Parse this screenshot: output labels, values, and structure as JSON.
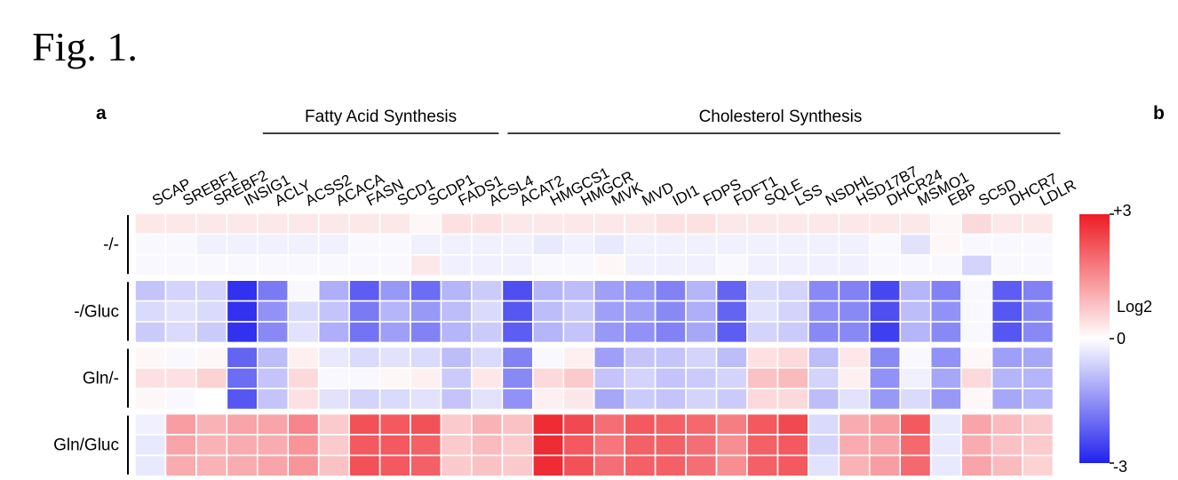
{
  "figure_title": "Fig. 1.",
  "panel_a": "a",
  "panel_b": "b",
  "chart_data": {
    "type": "heatmap",
    "groups": [
      {
        "label": "Fatty Acid Synthesis"
      },
      {
        "label": "Cholesterol Synthesis"
      }
    ],
    "columns": [
      "SCAP",
      "SREBF1",
      "SREBF2",
      "INSIG1",
      "ACLY",
      "ACSS2",
      "ACACA",
      "FASN",
      "SCD1",
      "SCDP1",
      "FADS1",
      "ACSL4",
      "ACAT2",
      "HMGCS1",
      "HMGCR",
      "MVK",
      "MVD",
      "IDI1",
      "FDPS",
      "FDFT1",
      "SQLE",
      "LSS",
      "NSDHL",
      "HSD17B7",
      "DHCR24",
      "MSMO1",
      "EBP",
      "SC5D",
      "DHCR7",
      "LDLR"
    ],
    "row_groups": [
      {
        "label": "-/-",
        "rows": [
          [
            0.3,
            0.3,
            0.3,
            0.3,
            0.3,
            0.3,
            0.3,
            0.3,
            0.3,
            0.1,
            0.4,
            0.4,
            0.3,
            0.3,
            0.3,
            0.3,
            0.3,
            0.4,
            0.4,
            0.3,
            0.3,
            0.3,
            0.3,
            0.3,
            0.3,
            0.3,
            0.1,
            0.5,
            0.3,
            0.3
          ],
          [
            -0.1,
            -0.1,
            -0.2,
            -0.2,
            -0.2,
            -0.2,
            -0.2,
            -0.1,
            -0.1,
            -0.2,
            -0.2,
            -0.2,
            -0.2,
            -0.3,
            -0.2,
            -0.3,
            -0.2,
            -0.2,
            -0.2,
            -0.2,
            -0.2,
            -0.2,
            -0.2,
            -0.2,
            -0.1,
            -0.4,
            0.1,
            -0.1,
            -0.1,
            -0.1
          ],
          [
            -0.1,
            -0.1,
            -0.1,
            -0.1,
            -0.1,
            -0.1,
            -0.1,
            -0.1,
            -0.1,
            0.3,
            -0.2,
            -0.2,
            -0.2,
            -0.1,
            -0.1,
            0.1,
            -0.2,
            -0.2,
            -0.2,
            -0.1,
            -0.2,
            -0.2,
            -0.2,
            -0.2,
            -0.1,
            -0.1,
            -0.1,
            -0.6,
            -0.1,
            -0.1
          ]
        ]
      },
      {
        "label": "-/Gluc",
        "rows": [
          [
            -0.8,
            -0.6,
            -0.6,
            -2.8,
            -1.8,
            -0.1,
            -1.1,
            -2.2,
            -1.4,
            -2.0,
            -1.0,
            -0.7,
            -2.4,
            -1.0,
            -0.9,
            -1.3,
            -1.4,
            -1.7,
            -1.0,
            -2.1,
            -0.5,
            -0.6,
            -1.6,
            -1.7,
            -2.5,
            -1.0,
            -1.7,
            -0.1,
            -2.2,
            -1.7
          ],
          [
            -0.5,
            -0.4,
            -0.5,
            -2.8,
            -1.5,
            -0.5,
            -0.8,
            -1.8,
            -1.0,
            -1.4,
            -0.9,
            -0.5,
            -2.3,
            -0.9,
            -0.7,
            -1.3,
            -1.3,
            -1.6,
            -1.1,
            -2.1,
            -0.4,
            -0.6,
            -1.5,
            -1.6,
            -2.4,
            -0.9,
            -1.5,
            -0.1,
            -2.3,
            -1.6
          ],
          [
            -0.7,
            -0.5,
            -0.7,
            -2.8,
            -1.6,
            -0.4,
            -1.1,
            -1.9,
            -1.3,
            -1.7,
            -1.0,
            -0.7,
            -2.2,
            -1.0,
            -0.8,
            -1.4,
            -1.5,
            -1.7,
            -1.2,
            -2.2,
            -0.6,
            -0.7,
            -1.6,
            -1.6,
            -2.6,
            -1.0,
            -1.6,
            -0.1,
            -2.3,
            -1.6
          ]
        ]
      },
      {
        "label": "Gln/-",
        "rows": [
          [
            0.1,
            -0.1,
            0.1,
            -2.1,
            -0.9,
            0.2,
            -0.3,
            -0.5,
            -0.4,
            -0.5,
            -0.9,
            -0.5,
            -1.7,
            -0.1,
            0.2,
            -1.3,
            -0.8,
            -0.8,
            -0.6,
            -0.9,
            0.4,
            0.5,
            -0.9,
            0.3,
            -1.6,
            -0.1,
            -1.5,
            0.1,
            -1.3,
            -1.2
          ],
          [
            0.4,
            0.4,
            0.6,
            -2.0,
            -0.8,
            0.5,
            -0.1,
            -0.1,
            0.1,
            0.2,
            -0.7,
            0.3,
            -1.6,
            0.5,
            0.7,
            -0.8,
            -0.6,
            -0.8,
            -0.7,
            -0.6,
            0.8,
            0.9,
            -0.6,
            0.2,
            -1.5,
            -0.2,
            -1.2,
            0.5,
            -1.0,
            -1.0
          ],
          [
            0.1,
            -0.1,
            0.0,
            -2.3,
            -0.8,
            0.4,
            -0.4,
            -0.6,
            -0.5,
            -0.4,
            -0.8,
            -0.4,
            -1.5,
            0.2,
            0.3,
            -1.2,
            -0.7,
            -0.8,
            -0.6,
            -0.7,
            0.5,
            0.5,
            -0.9,
            -0.4,
            -1.4,
            -0.5,
            -1.4,
            0.1,
            -1.2,
            -1.0
          ]
        ]
      },
      {
        "label": "Gln/Gluc",
        "rows": [
          [
            -0.2,
            1.3,
            1.0,
            1.2,
            1.2,
            1.6,
            0.7,
            2.3,
            2.2,
            2.3,
            0.7,
            1.0,
            0.8,
            2.8,
            2.4,
            1.9,
            2.2,
            2.1,
            2.0,
            1.7,
            2.2,
            2.4,
            -0.5,
            1.1,
            1.3,
            2.2,
            -0.3,
            1.2,
            0.9,
            0.7
          ],
          [
            -0.3,
            1.2,
            1.0,
            1.1,
            1.1,
            1.4,
            0.7,
            2.2,
            2.2,
            2.1,
            0.7,
            0.9,
            0.7,
            2.8,
            2.2,
            1.8,
            2.1,
            2.1,
            1.9,
            1.5,
            2.1,
            2.2,
            -0.6,
            1.1,
            1.2,
            2.0,
            -0.3,
            1.1,
            0.8,
            0.7
          ],
          [
            -0.3,
            1.1,
            1.0,
            1.1,
            1.2,
            1.4,
            0.8,
            2.3,
            2.2,
            2.1,
            0.7,
            0.8,
            0.7,
            2.8,
            2.3,
            1.9,
            2.1,
            2.1,
            1.9,
            1.5,
            2.1,
            2.2,
            -0.4,
            1.0,
            1.3,
            2.0,
            -0.3,
            1.2,
            0.9,
            0.6
          ]
        ]
      }
    ],
    "colorbar": {
      "max_label": "+3",
      "mid_label": "0",
      "min_label": "-3",
      "title": "Log2",
      "min": -3,
      "max": 3,
      "colors": [
        "#2222ee",
        "#ffffff",
        "#ee1c25"
      ]
    }
  }
}
